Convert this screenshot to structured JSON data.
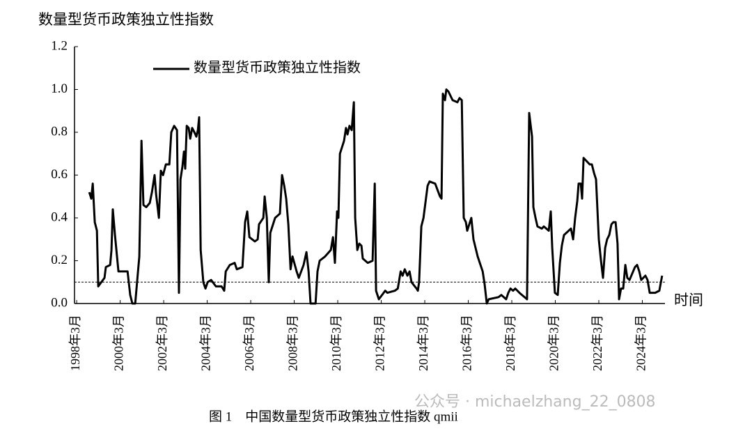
{
  "chart_data": {
    "type": "line",
    "y_label": "数量型货币政策独立性指数",
    "x_label": "时间",
    "caption": "图 1　中国数量型货币政策独立性指数 qmii",
    "watermark": "公众号 · michaelzhang_22_0808",
    "x": [
      1998.75,
      1998.84,
      1998.91,
      1999.0,
      1999.1,
      1999.16,
      1999.45,
      1999.51,
      1999.71,
      1999.77,
      1999.83,
      1999.93,
      2000.09,
      2000.51,
      2000.63,
      2000.73,
      2000.86,
      2000.99,
      2001.05,
      2001.15,
      2001.24,
      2001.37,
      2001.53,
      2001.63,
      2001.75,
      2001.82,
      2001.95,
      2002.04,
      2002.14,
      2002.27,
      2002.43,
      2002.52,
      2002.65,
      2002.78,
      2002.87,
      2002.94,
      2003.03,
      2003.1,
      2003.16,
      2003.23,
      2003.32,
      2003.39,
      2003.48,
      2003.58,
      2003.67,
      2003.74,
      2003.8,
      2003.87,
      2003.99,
      2004.09,
      2004.19,
      2004.35,
      2004.57,
      2004.83,
      2004.95,
      2005.02,
      2005.21,
      2005.43,
      2005.53,
      2005.79,
      2005.91,
      2006.01,
      2006.11,
      2006.36,
      2006.49,
      2006.55,
      2006.75,
      2006.81,
      2006.91,
      2007.0,
      2007.07,
      2007.29,
      2007.51,
      2007.61,
      2007.71,
      2007.8,
      2007.9,
      2008.0,
      2008.09,
      2008.28,
      2008.38,
      2008.6,
      2008.73,
      2008.83,
      2008.92,
      2009.15,
      2009.24,
      2009.34,
      2009.59,
      2009.85,
      2009.95,
      2010.04,
      2010.14,
      2010.2,
      2010.27,
      2010.46,
      2010.55,
      2010.62,
      2010.71,
      2010.81,
      2010.91,
      2010.97,
      2011.07,
      2011.16,
      2011.26,
      2011.32,
      2011.55,
      2011.77,
      2011.87,
      2011.93,
      2012.06,
      2012.35,
      2012.45,
      2012.8,
      2012.93,
      2013.06,
      2013.15,
      2013.25,
      2013.37,
      2013.47,
      2013.56,
      2013.79,
      2013.85,
      2013.91,
      2014.01,
      2014.11,
      2014.3,
      2014.39,
      2014.65,
      2014.87,
      2014.94,
      2015.0,
      2015.1,
      2015.16,
      2015.26,
      2015.45,
      2015.67,
      2015.77,
      2015.87,
      2015.96,
      2016.06,
      2016.12,
      2016.31,
      2016.41,
      2016.6,
      2016.83,
      2016.92,
      2017.02,
      2017.11,
      2017.56,
      2017.69,
      2017.91,
      2018.01,
      2018.11,
      2018.23,
      2018.33,
      2018.52,
      2018.87,
      2018.97,
      2019.1,
      2019.16,
      2019.26,
      2019.35,
      2019.55,
      2019.64,
      2019.87,
      2019.96,
      2020.03,
      2020.15,
      2020.28,
      2020.38,
      2020.47,
      2020.57,
      2020.89,
      2020.99,
      2021.08,
      2021.18,
      2021.24,
      2021.34,
      2021.4,
      2021.47,
      2021.75,
      2021.85,
      2021.95,
      2022.04,
      2022.17,
      2022.27,
      2022.36,
      2022.46,
      2022.55,
      2022.65,
      2022.75,
      2022.84,
      2022.94,
      2023.03,
      2023.1,
      2023.19,
      2023.29,
      2023.39,
      2023.48,
      2023.58,
      2023.83,
      2023.93,
      2024.03,
      2024.12,
      2024.31,
      2024.41,
      2024.51,
      2024.76,
      2024.95,
      2025.08
    ],
    "series": [
      {
        "name": "数量型货币政策独立性指数",
        "color": "#000000",
        "values": [
          0.52,
          0.49,
          0.56,
          0.38,
          0.34,
          0.08,
          0.12,
          0.17,
          0.18,
          0.25,
          0.44,
          0.32,
          0.15,
          0.15,
          0.04,
          0.0,
          0.0,
          0.15,
          0.22,
          0.76,
          0.46,
          0.45,
          0.47,
          0.52,
          0.6,
          0.51,
          0.4,
          0.62,
          0.6,
          0.65,
          0.65,
          0.8,
          0.83,
          0.81,
          0.05,
          0.58,
          0.64,
          0.71,
          0.63,
          0.83,
          0.82,
          0.77,
          0.82,
          0.8,
          0.78,
          0.81,
          0.87,
          0.25,
          0.1,
          0.07,
          0.1,
          0.11,
          0.08,
          0.08,
          0.06,
          0.15,
          0.18,
          0.19,
          0.16,
          0.17,
          0.38,
          0.43,
          0.31,
          0.29,
          0.3,
          0.37,
          0.4,
          0.5,
          0.4,
          0.1,
          0.33,
          0.4,
          0.42,
          0.6,
          0.55,
          0.49,
          0.37,
          0.16,
          0.22,
          0.15,
          0.12,
          0.18,
          0.24,
          0.15,
          0.0,
          0.0,
          0.15,
          0.2,
          0.22,
          0.25,
          0.31,
          0.19,
          0.43,
          0.4,
          0.7,
          0.76,
          0.82,
          0.79,
          0.83,
          0.81,
          0.94,
          0.4,
          0.25,
          0.28,
          0.27,
          0.21,
          0.19,
          0.2,
          0.56,
          0.06,
          0.02,
          0.06,
          0.05,
          0.06,
          0.07,
          0.15,
          0.13,
          0.16,
          0.13,
          0.15,
          0.1,
          0.07,
          0.06,
          0.1,
          0.36,
          0.4,
          0.55,
          0.57,
          0.56,
          0.5,
          0.49,
          0.98,
          0.95,
          1.0,
          0.99,
          0.95,
          0.94,
          0.96,
          0.95,
          0.4,
          0.38,
          0.34,
          0.4,
          0.3,
          0.22,
          0.15,
          0.09,
          0.0,
          0.02,
          0.03,
          0.04,
          0.02,
          0.05,
          0.07,
          0.06,
          0.07,
          0.05,
          0.02,
          0.89,
          0.78,
          0.45,
          0.4,
          0.36,
          0.35,
          0.36,
          0.34,
          0.43,
          0.26,
          0.05,
          0.04,
          0.19,
          0.27,
          0.32,
          0.35,
          0.3,
          0.4,
          0.48,
          0.56,
          0.56,
          0.49,
          0.68,
          0.65,
          0.65,
          0.61,
          0.58,
          0.3,
          0.2,
          0.12,
          0.26,
          0.3,
          0.32,
          0.37,
          0.38,
          0.38,
          0.28,
          0.02,
          0.07,
          0.07,
          0.18,
          0.12,
          0.11,
          0.17,
          0.18,
          0.15,
          0.11,
          0.13,
          0.11,
          0.05,
          0.05,
          0.06,
          0.13
        ]
      }
    ],
    "reference_line": 0.1,
    "xlim": [
      1998.07,
      2025.21
    ],
    "xticks": [
      {
        "value": 1998.17,
        "label": "1998年3月"
      },
      {
        "value": 2000.17,
        "label": "2000年3月"
      },
      {
        "value": 2002.17,
        "label": "2002年3月"
      },
      {
        "value": 2004.17,
        "label": "2004年3月"
      },
      {
        "value": 2006.17,
        "label": "2006年3月"
      },
      {
        "value": 2008.17,
        "label": "2008年3月"
      },
      {
        "value": 2010.17,
        "label": "2010年3月"
      },
      {
        "value": 2012.17,
        "label": "2012年3月"
      },
      {
        "value": 2014.17,
        "label": "2014年3月"
      },
      {
        "value": 2016.17,
        "label": "2016年3月"
      },
      {
        "value": 2018.17,
        "label": "2018年3月"
      },
      {
        "value": 2020.17,
        "label": "2020年3月"
      },
      {
        "value": 2022.17,
        "label": "2022年3月"
      },
      {
        "value": 2024.17,
        "label": "2024年3月"
      }
    ],
    "ylim": [
      0,
      1.2
    ],
    "yticks": [
      {
        "value": 0,
        "label": "0.0"
      },
      0.2,
      0.4,
      0.6,
      0.8,
      {
        "value": 1,
        "label": "1.0"
      },
      1.2
    ],
    "legend": "top-left"
  }
}
